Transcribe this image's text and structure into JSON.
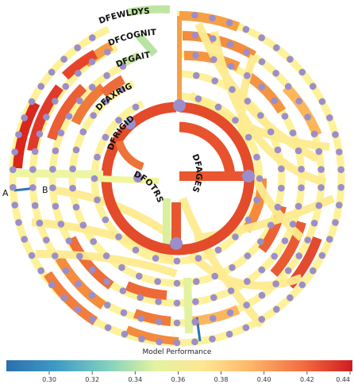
{
  "diagram": {
    "labels": [
      {
        "id": "dfewldys",
        "text": "DFEWLDYS"
      },
      {
        "id": "dfcognit",
        "text": "DFCOGNIT"
      },
      {
        "id": "dfgait",
        "text": "DFGAIT"
      },
      {
        "id": "dfaxrig",
        "text": "DFAXRIG"
      },
      {
        "id": "dfrigida",
        "text": "DFRIGIDA"
      },
      {
        "id": "dfotrs",
        "text": "DFOTRS"
      },
      {
        "id": "dfagesx",
        "text": "DFAGESX"
      }
    ],
    "node_a_label": "A",
    "node_b_label": "B"
  },
  "colorbar": {
    "title": "Model Performance",
    "ticks": [
      "0.30",
      "0.32",
      "0.34",
      "0.36",
      "0.38",
      "0.40",
      "0.42",
      "0.44"
    ],
    "colors": [
      "#2c7bb6",
      "#4aa4c8",
      "#abdda4",
      "#e6f598",
      "#fee08b",
      "#fdae61",
      "#f46d43",
      "#d7191c"
    ]
  }
}
